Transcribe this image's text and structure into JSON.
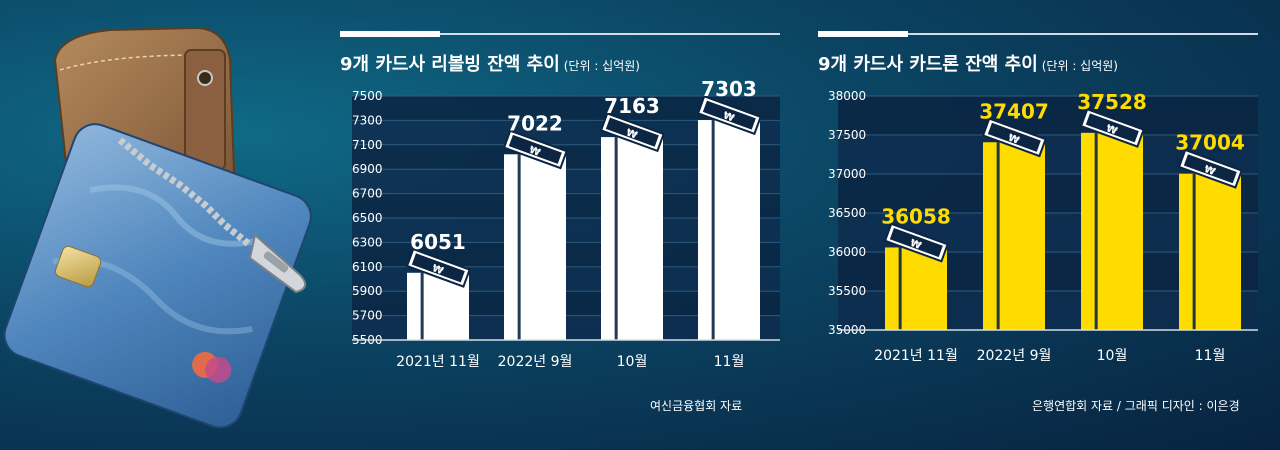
{
  "colors": {
    "bar_left": "#ffffff",
    "bar_right": "#ffdc00",
    "value_left": "#ffffff",
    "value_right": "#ffdc00"
  },
  "charts": [
    {
      "title": "9개 카드사 리볼빙 잔액 추이",
      "unit": "(단위 : 십억원)",
      "source": "여신금융협회 자료"
    },
    {
      "title": "9개 카드사 카드론 잔액 추이",
      "unit": "(단위 : 십억원)",
      "source": "은행연합회 자료 / 그래픽 디자인 : 이은경"
    }
  ],
  "chart_data": [
    {
      "type": "bar",
      "title": "9개 카드사 리볼빙 잔액 추이",
      "unit": "(단위 : 십억원)",
      "categories": [
        "2021년 11월",
        "2022년 9월",
        "10월",
        "11월"
      ],
      "values": [
        6051,
        7022,
        7163,
        7303
      ],
      "ylim": [
        5500,
        7500
      ],
      "yticks": [
        5500,
        5700,
        5900,
        6100,
        6300,
        6500,
        6700,
        6900,
        7100,
        7300,
        7500
      ],
      "grid": true
    },
    {
      "type": "bar",
      "title": "9개 카드사 카드론 잔액 추이",
      "unit": "(단위 : 십억원)",
      "categories": [
        "2021년 11월",
        "2022년 9월",
        "10월",
        "11월"
      ],
      "values": [
        36058,
        37407,
        37528,
        37004
      ],
      "ylim": [
        35000,
        38000
      ],
      "yticks": [
        35000,
        35500,
        36000,
        36500,
        37000,
        37500,
        38000
      ],
      "grid": true
    }
  ]
}
